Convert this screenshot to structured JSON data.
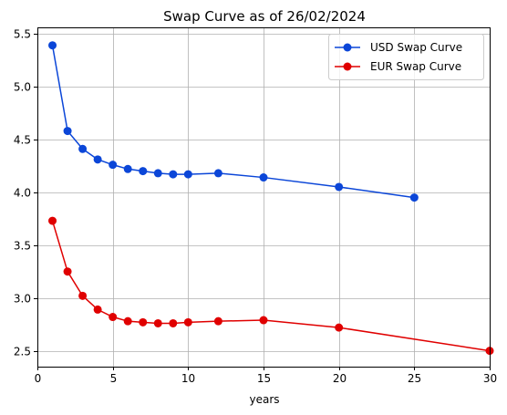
{
  "chart_data": {
    "type": "line",
    "title": "Swap Curve as of 26/02/2024",
    "xlabel": "years",
    "ylabel": "",
    "xlim": [
      0,
      30
    ],
    "ylim": [
      2.35,
      5.56
    ],
    "xticks": [
      0,
      5,
      10,
      15,
      20,
      25,
      30
    ],
    "yticks": [
      2.5,
      3.0,
      3.5,
      4.0,
      4.5,
      5.0,
      5.5
    ],
    "xtick_labels": [
      "0",
      "5",
      "10",
      "15",
      "20",
      "25",
      "30"
    ],
    "ytick_labels": [
      "2.5",
      "3.0",
      "3.5",
      "4.0",
      "4.5",
      "5.0",
      "5.5"
    ],
    "grid": true,
    "legend_position": "top-right",
    "series": [
      {
        "name": "USD Swap Curve",
        "color": "#0b46d8",
        "marker": "circle",
        "x": [
          1,
          2,
          3,
          4,
          5,
          6,
          7,
          8,
          9,
          10,
          12,
          15,
          20,
          25
        ],
        "y": [
          5.39,
          4.58,
          4.41,
          4.31,
          4.26,
          4.22,
          4.2,
          4.18,
          4.17,
          4.17,
          4.18,
          4.14,
          4.05,
          3.95
        ]
      },
      {
        "name": "EUR Swap Curve",
        "color": "#e00000",
        "marker": "circle",
        "x": [
          1,
          2,
          3,
          4,
          5,
          6,
          7,
          8,
          9,
          10,
          12,
          15,
          20,
          30
        ],
        "y": [
          3.73,
          3.25,
          3.02,
          2.89,
          2.82,
          2.78,
          2.77,
          2.76,
          2.76,
          2.77,
          2.78,
          2.79,
          2.72,
          2.5
        ]
      }
    ]
  }
}
